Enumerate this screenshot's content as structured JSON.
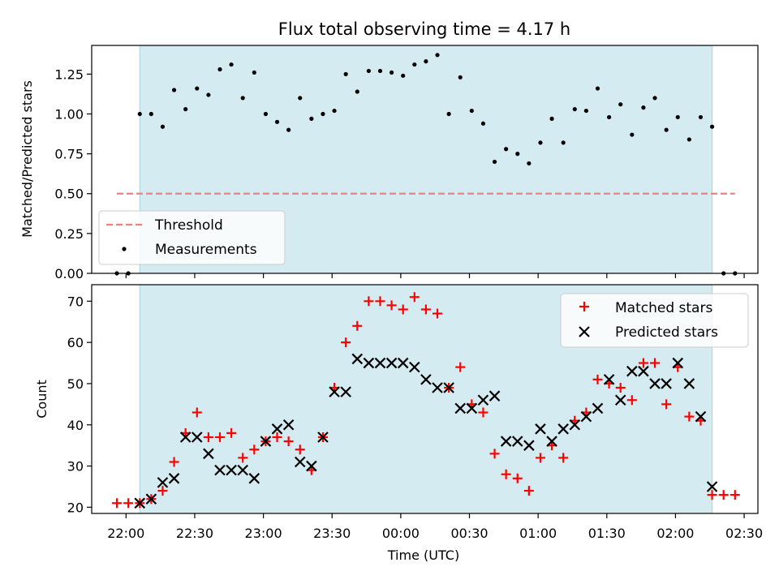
{
  "chart_data": [
    {
      "type": "scatter",
      "title": "Flux total observing time = 4.17 h",
      "xlabel": "",
      "ylabel": "Matched/Predicted stars",
      "ylim": [
        0,
        1.43
      ],
      "yticks": [
        "0.00",
        "0.25",
        "0.50",
        "0.75",
        "1.00",
        "1.25"
      ],
      "shaded_interval": [
        "22:06",
        "02:16"
      ],
      "threshold": {
        "name": "Threshold",
        "value": 0.5,
        "x_range": [
          "21:56",
          "02:26"
        ],
        "color": "#f08080"
      },
      "legend_position": "lower-left",
      "series": [
        {
          "name": "Measurements",
          "color": "#000000",
          "marker": "dot",
          "points": [
            [
              "21:56",
              0.0
            ],
            [
              "22:01",
              0.0
            ],
            [
              "22:06",
              1.0
            ],
            [
              "22:11",
              1.0
            ],
            [
              "22:16",
              0.92
            ],
            [
              "22:21",
              1.15
            ],
            [
              "22:26",
              1.03
            ],
            [
              "22:31",
              1.16
            ],
            [
              "22:36",
              1.12
            ],
            [
              "22:41",
              1.28
            ],
            [
              "22:46",
              1.31
            ],
            [
              "22:51",
              1.1
            ],
            [
              "22:56",
              1.26
            ],
            [
              "23:01",
              1.0
            ],
            [
              "23:06",
              0.95
            ],
            [
              "23:11",
              0.9
            ],
            [
              "23:16",
              1.1
            ],
            [
              "23:21",
              0.97
            ],
            [
              "23:26",
              1.0
            ],
            [
              "23:31",
              1.02
            ],
            [
              "23:36",
              1.25
            ],
            [
              "23:41",
              1.14
            ],
            [
              "23:46",
              1.27
            ],
            [
              "23:51",
              1.27
            ],
            [
              "23:56",
              1.26
            ],
            [
              "00:01",
              1.24
            ],
            [
              "00:06",
              1.31
            ],
            [
              "00:11",
              1.33
            ],
            [
              "00:16",
              1.37
            ],
            [
              "00:21",
              1.0
            ],
            [
              "00:26",
              1.23
            ],
            [
              "00:31",
              1.02
            ],
            [
              "00:36",
              0.94
            ],
            [
              "00:41",
              0.7
            ],
            [
              "00:46",
              0.78
            ],
            [
              "00:51",
              0.75
            ],
            [
              "00:56",
              0.69
            ],
            [
              "01:01",
              0.82
            ],
            [
              "01:06",
              0.97
            ],
            [
              "01:11",
              0.82
            ],
            [
              "01:16",
              1.03
            ],
            [
              "01:21",
              1.02
            ],
            [
              "01:26",
              1.16
            ],
            [
              "01:31",
              0.98
            ],
            [
              "01:36",
              1.06
            ],
            [
              "01:41",
              0.87
            ],
            [
              "01:46",
              1.04
            ],
            [
              "01:51",
              1.1
            ],
            [
              "01:56",
              0.9
            ],
            [
              "02:01",
              0.98
            ],
            [
              "02:06",
              0.84
            ],
            [
              "02:11",
              0.98
            ],
            [
              "02:16",
              0.92
            ],
            [
              "02:21",
              0.0
            ],
            [
              "02:26",
              0.0
            ]
          ]
        }
      ]
    },
    {
      "type": "scatter",
      "title": "",
      "xlabel": "Time (UTC)",
      "ylabel": "Count",
      "ylim": [
        18.5,
        74
      ],
      "yticks": [
        "20",
        "30",
        "40",
        "50",
        "60",
        "70"
      ],
      "xticks": [
        "22:00",
        "22:30",
        "23:00",
        "23:30",
        "00:00",
        "00:30",
        "01:00",
        "01:30",
        "02:00",
        "02:30"
      ],
      "shaded_interval": [
        "22:06",
        "02:16"
      ],
      "legend_position": "upper-right",
      "series": [
        {
          "name": "Matched stars",
          "color": "#ff0000",
          "marker": "plus",
          "points": [
            [
              "21:56",
              21
            ],
            [
              "22:01",
              21
            ],
            [
              "22:06",
              21
            ],
            [
              "22:11",
              22
            ],
            [
              "22:16",
              24
            ],
            [
              "22:21",
              31
            ],
            [
              "22:26",
              38
            ],
            [
              "22:31",
              43
            ],
            [
              "22:36",
              37
            ],
            [
              "22:41",
              37
            ],
            [
              "22:46",
              38
            ],
            [
              "22:51",
              32
            ],
            [
              "22:56",
              34
            ],
            [
              "23:01",
              36
            ],
            [
              "23:06",
              37
            ],
            [
              "23:11",
              36
            ],
            [
              "23:16",
              34
            ],
            [
              "23:21",
              29
            ],
            [
              "23:26",
              37
            ],
            [
              "23:31",
              49
            ],
            [
              "23:36",
              60
            ],
            [
              "23:41",
              64
            ],
            [
              "23:46",
              70
            ],
            [
              "23:51",
              70
            ],
            [
              "23:56",
              69
            ],
            [
              "00:01",
              68
            ],
            [
              "00:06",
              71
            ],
            [
              "00:11",
              68
            ],
            [
              "00:16",
              67
            ],
            [
              "00:21",
              49
            ],
            [
              "00:26",
              54
            ],
            [
              "00:31",
              45
            ],
            [
              "00:36",
              43
            ],
            [
              "00:41",
              33
            ],
            [
              "00:46",
              28
            ],
            [
              "00:51",
              27
            ],
            [
              "00:56",
              24
            ],
            [
              "01:01",
              32
            ],
            [
              "01:06",
              35
            ],
            [
              "01:11",
              32
            ],
            [
              "01:16",
              41
            ],
            [
              "01:21",
              43
            ],
            [
              "01:26",
              51
            ],
            [
              "01:31",
              50
            ],
            [
              "01:36",
              49
            ],
            [
              "01:41",
              46
            ],
            [
              "01:46",
              55
            ],
            [
              "01:51",
              55
            ],
            [
              "01:56",
              45
            ],
            [
              "02:01",
              54
            ],
            [
              "02:06",
              42
            ],
            [
              "02:11",
              41
            ],
            [
              "02:16",
              23
            ],
            [
              "02:21",
              23
            ],
            [
              "02:26",
              23
            ]
          ]
        },
        {
          "name": "Predicted stars",
          "color": "#000000",
          "marker": "cross",
          "points": [
            [
              "22:06",
              21
            ],
            [
              "22:11",
              22
            ],
            [
              "22:16",
              26
            ],
            [
              "22:21",
              27
            ],
            [
              "22:26",
              37
            ],
            [
              "22:31",
              37
            ],
            [
              "22:36",
              33
            ],
            [
              "22:41",
              29
            ],
            [
              "22:46",
              29
            ],
            [
              "22:51",
              29
            ],
            [
              "22:56",
              27
            ],
            [
              "23:01",
              36
            ],
            [
              "23:06",
              39
            ],
            [
              "23:11",
              40
            ],
            [
              "23:16",
              31
            ],
            [
              "23:21",
              30
            ],
            [
              "23:26",
              37
            ],
            [
              "23:31",
              48
            ],
            [
              "23:36",
              48
            ],
            [
              "23:41",
              56
            ],
            [
              "23:46",
              55
            ],
            [
              "23:51",
              55
            ],
            [
              "23:56",
              55
            ],
            [
              "00:01",
              55
            ],
            [
              "00:06",
              54
            ],
            [
              "00:11",
              51
            ],
            [
              "00:16",
              49
            ],
            [
              "00:21",
              49
            ],
            [
              "00:26",
              44
            ],
            [
              "00:31",
              44
            ],
            [
              "00:36",
              46
            ],
            [
              "00:41",
              47
            ],
            [
              "00:46",
              36
            ],
            [
              "00:51",
              36
            ],
            [
              "00:56",
              35
            ],
            [
              "01:01",
              39
            ],
            [
              "01:06",
              36
            ],
            [
              "01:11",
              39
            ],
            [
              "01:16",
              40
            ],
            [
              "01:21",
              42
            ],
            [
              "01:26",
              44
            ],
            [
              "01:31",
              51
            ],
            [
              "01:36",
              46
            ],
            [
              "01:41",
              53
            ],
            [
              "01:46",
              53
            ],
            [
              "01:51",
              50
            ],
            [
              "01:56",
              50
            ],
            [
              "02:01",
              55
            ],
            [
              "02:06",
              50
            ],
            [
              "02:11",
              42
            ],
            [
              "02:16",
              25
            ]
          ]
        }
      ]
    }
  ],
  "style": {
    "shade_color": "#d4ebf1",
    "shade_edge": "#a8d3de"
  }
}
